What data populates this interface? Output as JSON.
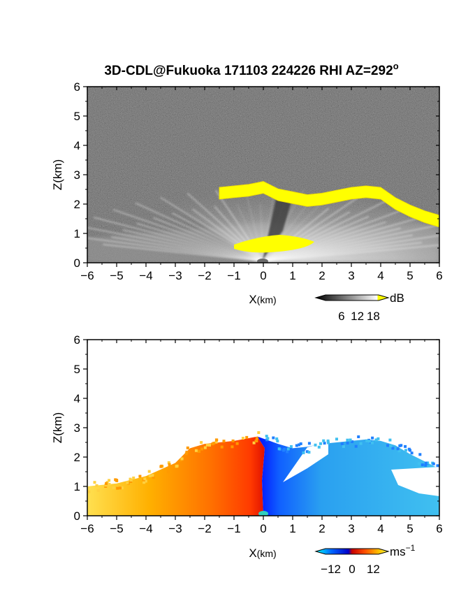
{
  "chart_data": [
    {
      "type": "heatmap",
      "title": "3D-CDL@Fukuoka 171103 224226 RHI AZ=292",
      "title_superscript": "o",
      "xlabel_main": "X",
      "xlabel_unit": "(km)",
      "ylabel": "Z(km)",
      "xlim": [
        -6,
        6
      ],
      "ylim": [
        0,
        6
      ],
      "x_ticks": [
        -6,
        -5,
        -4,
        -3,
        -2,
        -1,
        0,
        1,
        2,
        3,
        4,
        5,
        6
      ],
      "y_ticks": [
        0,
        1,
        2,
        3,
        4,
        5,
        6
      ],
      "variable": "SNR",
      "colorbar": {
        "unit": "dB",
        "ticks": [
          6,
          12,
          18
        ],
        "range": [
          0,
          20
        ],
        "colors": [
          "#000000",
          "#ffffff",
          "#ffff00"
        ]
      },
      "features": {
        "cloud_base_layer": [
          [
            -1.5,
            2.45
          ],
          [
            -1.0,
            2.5
          ],
          [
            -0.5,
            2.55
          ],
          [
            0.0,
            2.65
          ],
          [
            0.5,
            2.4
          ],
          [
            1.0,
            2.3
          ],
          [
            1.5,
            2.2
          ],
          [
            2.0,
            2.25
          ],
          [
            2.5,
            2.35
          ],
          [
            3.0,
            2.45
          ],
          [
            3.5,
            2.5
          ],
          [
            4.0,
            2.45
          ],
          [
            4.5,
            2.1
          ],
          [
            5.0,
            1.85
          ],
          [
            5.5,
            1.65
          ],
          [
            6.0,
            1.5
          ]
        ],
        "near_field_echo": {
          "x_range": [
            -1.0,
            1.8
          ],
          "z_center": 0.65
        }
      }
    },
    {
      "type": "heatmap",
      "title": "",
      "xlabel_main": "X",
      "xlabel_unit": "(km)",
      "ylabel": "Z(km)",
      "xlim": [
        -6,
        6
      ],
      "ylim": [
        0,
        6
      ],
      "x_ticks": [
        -6,
        -5,
        -4,
        -3,
        -2,
        -1,
        0,
        1,
        2,
        3,
        4,
        5,
        6
      ],
      "y_ticks": [
        0,
        1,
        2,
        3,
        4,
        5,
        6
      ],
      "variable": "Doppler velocity",
      "colorbar": {
        "unit": "ms",
        "unit_superscript": "−1",
        "ticks": [
          "−12",
          "0",
          "12"
        ],
        "range": [
          -15,
          15
        ],
        "colors": [
          "#00ffff",
          "#0064ff",
          "#0000c8",
          "#c80000",
          "#ff5000",
          "#ffc800",
          "#ffff64"
        ]
      },
      "features": {
        "echo_top": [
          [
            -6.0,
            1.0
          ],
          [
            -5.0,
            1.1
          ],
          [
            -4.0,
            1.35
          ],
          [
            -3.0,
            1.8
          ],
          [
            -2.5,
            2.3
          ],
          [
            -2.0,
            2.45
          ],
          [
            -1.0,
            2.55
          ],
          [
            -0.2,
            2.7
          ],
          [
            0.5,
            2.45
          ],
          [
            1.0,
            2.3
          ],
          [
            1.5,
            2.35
          ],
          [
            2.0,
            2.45
          ],
          [
            2.5,
            2.5
          ],
          [
            3.0,
            2.55
          ],
          [
            3.5,
            2.6
          ],
          [
            4.0,
            2.55
          ],
          [
            4.5,
            2.4
          ],
          [
            5.0,
            2.1
          ],
          [
            5.5,
            1.85
          ],
          [
            6.0,
            1.6
          ]
        ]
      }
    }
  ]
}
